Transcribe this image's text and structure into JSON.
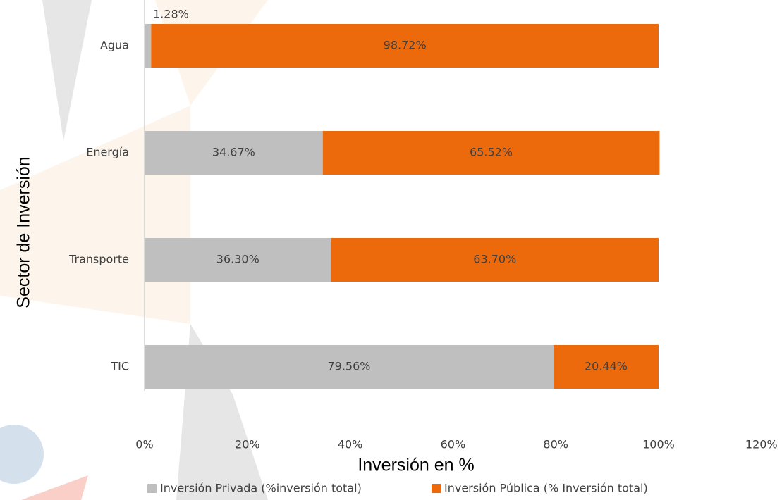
{
  "chart_data": {
    "type": "stacked-barh",
    "xlabel": "Inversión en %",
    "ylabel": "Sector de Inversión",
    "categories": [
      "Agua",
      "Energía",
      "Transporte",
      "TIC"
    ],
    "series": [
      {
        "name": "Inversión Privada (%inversión total)",
        "color": "#bfbfbf",
        "values": [
          1.28,
          34.67,
          36.3,
          79.56
        ],
        "value_labels": [
          "1.28%",
          "34.67%",
          "36.30%",
          "79.56%"
        ]
      },
      {
        "name": "Inversión Pública (% Inversión total)",
        "color": "#ec6a0c",
        "values": [
          98.72,
          65.52,
          63.7,
          20.44
        ],
        "value_labels": [
          "98.72%",
          "65.52%",
          "63.70%",
          "20.44%"
        ]
      }
    ],
    "xlim": [
      0,
      120
    ],
    "xticks": [
      {
        "value": 0,
        "label": "0%"
      },
      {
        "value": 20,
        "label": "20%"
      },
      {
        "value": 40,
        "label": "40%"
      },
      {
        "value": 60,
        "label": "60%"
      },
      {
        "value": 80,
        "label": "80%"
      },
      {
        "value": 100,
        "label": "100%"
      },
      {
        "value": 120,
        "label": "120%"
      }
    ],
    "legend": "bottom"
  }
}
